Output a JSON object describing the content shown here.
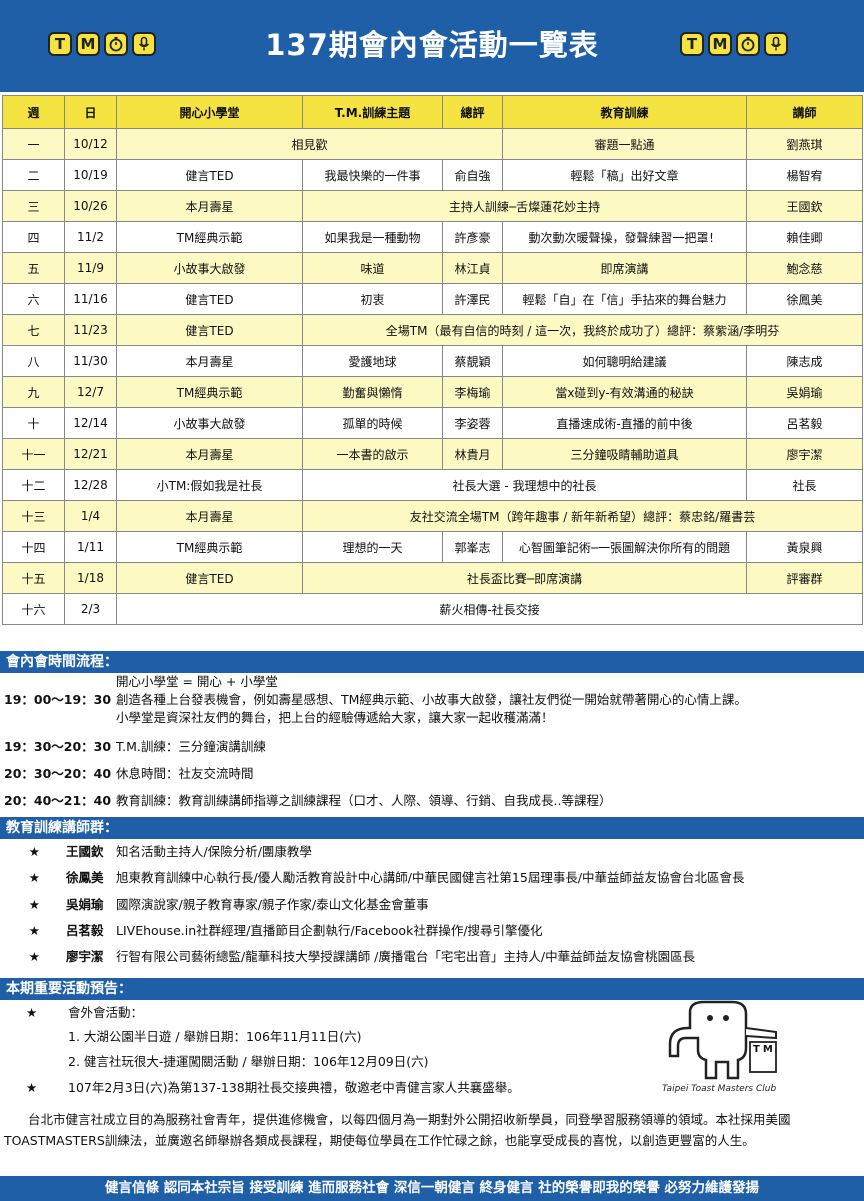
{
  "header": {
    "title": "137期會內會活動一覽表",
    "logo_letters": [
      "T",
      "M",
      "⏱",
      "🎤"
    ]
  },
  "schedule": {
    "columns": [
      "週",
      "日",
      "開心小學堂",
      "T.M.訓練主題",
      "總評",
      "教育訓練",
      "講師"
    ],
    "rows": [
      {
        "week": "一",
        "date": "10/12",
        "merged1": "相見歡",
        "edu": "審題一點通",
        "lecturer": "劉燕琪"
      },
      {
        "week": "二",
        "date": "10/19",
        "school": "健言TED",
        "theme": "我最快樂的一件事",
        "evaluator": "俞自強",
        "edu": "輕鬆「稿」出好文章",
        "lecturer": "楊智宥"
      },
      {
        "week": "三",
        "date": "10/26",
        "school": "本月壽星",
        "merged2": "主持人訓練─舌燦蓮花妙主持",
        "lecturer": "王國欽"
      },
      {
        "week": "四",
        "date": "11/2",
        "school": "TM經典示範",
        "theme": "如果我是一種動物",
        "evaluator": "許彥豪",
        "edu": "動次動次暖聲操，發聲練習一把罩！",
        "lecturer": "賴佳卿"
      },
      {
        "week": "五",
        "date": "11/9",
        "school": "小故事大啟發",
        "theme": "味道",
        "evaluator": "林江貞",
        "edu": "即席演講",
        "lecturer": "鮑念慈"
      },
      {
        "week": "六",
        "date": "11/16",
        "school": "健言TED",
        "theme": "初衷",
        "evaluator": "許澤民",
        "edu": "輕鬆「自」在「信」手拈來的舞台魅力",
        "lecturer": "徐鳳美"
      },
      {
        "week": "七",
        "date": "11/23",
        "school": "健言TED",
        "merged3": "全場TM（最有自信的時刻 / 這一次，我終於成功了）總評：蔡紫涵/李明芬"
      },
      {
        "week": "八",
        "date": "11/30",
        "school": "本月壽星",
        "theme": "愛護地球",
        "evaluator": "蔡靚穎",
        "edu": "如何聰明給建議",
        "lecturer": "陳志成"
      },
      {
        "week": "九",
        "date": "12/7",
        "school": "TM經典示範",
        "theme": "勤奮與懶惰",
        "evaluator": "李梅瑜",
        "edu": "當x碰到y-有效溝通的秘訣",
        "lecturer": "吳娟瑜"
      },
      {
        "week": "十",
        "date": "12/14",
        "school": "小故事大啟發",
        "theme": "孤單的時候",
        "evaluator": "李姿蓉",
        "edu": "直播速成術-直播的前中後",
        "lecturer": "呂茗毅"
      },
      {
        "week": "十一",
        "date": "12/21",
        "school": "本月壽星",
        "theme": "一本書的啟示",
        "evaluator": "林貴月",
        "edu": "三分鐘吸睛輔助道具",
        "lecturer": "廖宇潔"
      },
      {
        "week": "十二",
        "date": "12/28",
        "school": "小TM:假如我是社長",
        "merged2": "社長大選 - 我理想中的社長",
        "lecturer": "社長"
      },
      {
        "week": "十三",
        "date": "1/4",
        "school": "本月壽星",
        "merged3": "友社交流全場TM（跨年趣事 / 新年新希望）總評：蔡忠銘/羅書芸"
      },
      {
        "week": "十四",
        "date": "1/11",
        "school": "TM經典示範",
        "theme": "理想的一天",
        "evaluator": "郭峯志",
        "edu": "心智圖筆記術─一張圖解決你所有的問題",
        "lecturer": "黃泉興"
      },
      {
        "week": "十五",
        "date": "1/18",
        "school": "健言TED",
        "merged2": "社長盃比賽─即席演講",
        "lecturer": "評審群"
      },
      {
        "week": "十六",
        "date": "2/3",
        "merged4": "薪火相傳-社長交接"
      }
    ]
  },
  "flow": {
    "heading": "會內會時間流程：",
    "items": [
      {
        "time": "19：00～19：30",
        "lines": [
          "開心小學堂 = 開心 + 小學堂",
          "創造各種上台發表機會，例如壽星感想、TM經典示範、小故事大啟發，讓社友們從一開始就帶著開心的心情上課。",
          "小學堂是資深社友們的舞台，把上台的經驗傳遞給大家，讓大家一起收穫滿滿！"
        ]
      },
      {
        "time": "19：30～20：30",
        "lines": [
          "T.M.訓練：三分鐘演講訓練"
        ]
      },
      {
        "time": "20：30～20：40",
        "lines": [
          "休息時間：社友交流時間"
        ]
      },
      {
        "time": "20：40～21：40",
        "lines": [
          "教育訓練：教育訓練講師指導之訓練課程（口才、人際、領導、行銷、自我成長..等課程）"
        ]
      }
    ]
  },
  "trainers": {
    "heading": "教育訓練講師群：",
    "star": "★",
    "items": [
      {
        "name": "王國欽",
        "desc": "知名活動主持人/保險分析/團康教學"
      },
      {
        "name": "徐鳳美",
        "desc": "旭東教育訓練中心執行長/優人勵活教育設計中心講師/中華民國健言社第15屆理事長/中華益師益友協會台北區會長"
      },
      {
        "name": "吳娟瑜",
        "desc": "國際演說家/親子教育專家/親子作家/泰山文化基金會董事"
      },
      {
        "name": "呂茗毅",
        "desc": "LIVEhouse.in社群經理/直播節目企劃執行/Facebook社群操作/搜尋引擎優化"
      },
      {
        "name": "廖宇潔",
        "desc": "行智有限公司藝術總監/龍華科技大學授課講師 /廣播電台「宅宅出音」主持人/中華益師益友協會桃園區長"
      }
    ]
  },
  "announce": {
    "heading": "本期重要活動預告：",
    "star": "★",
    "outing_label": "會外會活動：",
    "outing_items": [
      "1. 大湖公園半日遊 / 舉辦日期：106年11月11日(六)",
      "2. 健言社玩很大-捷運闖關活動 / 舉辦日期：106年12月09日(六)"
    ],
    "handover": "107年2月3日(六)為第137-138期社長交接典禮，敬邀老中青健言家人共襄盛舉。",
    "club_name": "Taipei Toast Masters Club",
    "mascot_letters": "TM"
  },
  "intro": "台北市健言社成立目的為服務社會青年，提供進修機會，以每四個月為一期對外公開招收新學員，同登學習服務領導的領域。本社採用美國TOASTMASTERS訓練法，並廣邀名師舉辦各類成長課程，期使每位學員在工作忙碌之餘，也能享受成長的喜悅，以創造更豐富的人生。",
  "footer": "健言信條  認同本社宗旨  接受訓練  進而服務社會  深信一朝健言  終身健言  社的榮譽即我的榮譽  必努力維護發揚",
  "colors": {
    "brand_blue": "#1f5fa8",
    "header_yellow": "#f5e342",
    "row_tint": "#fdf9c3"
  }
}
